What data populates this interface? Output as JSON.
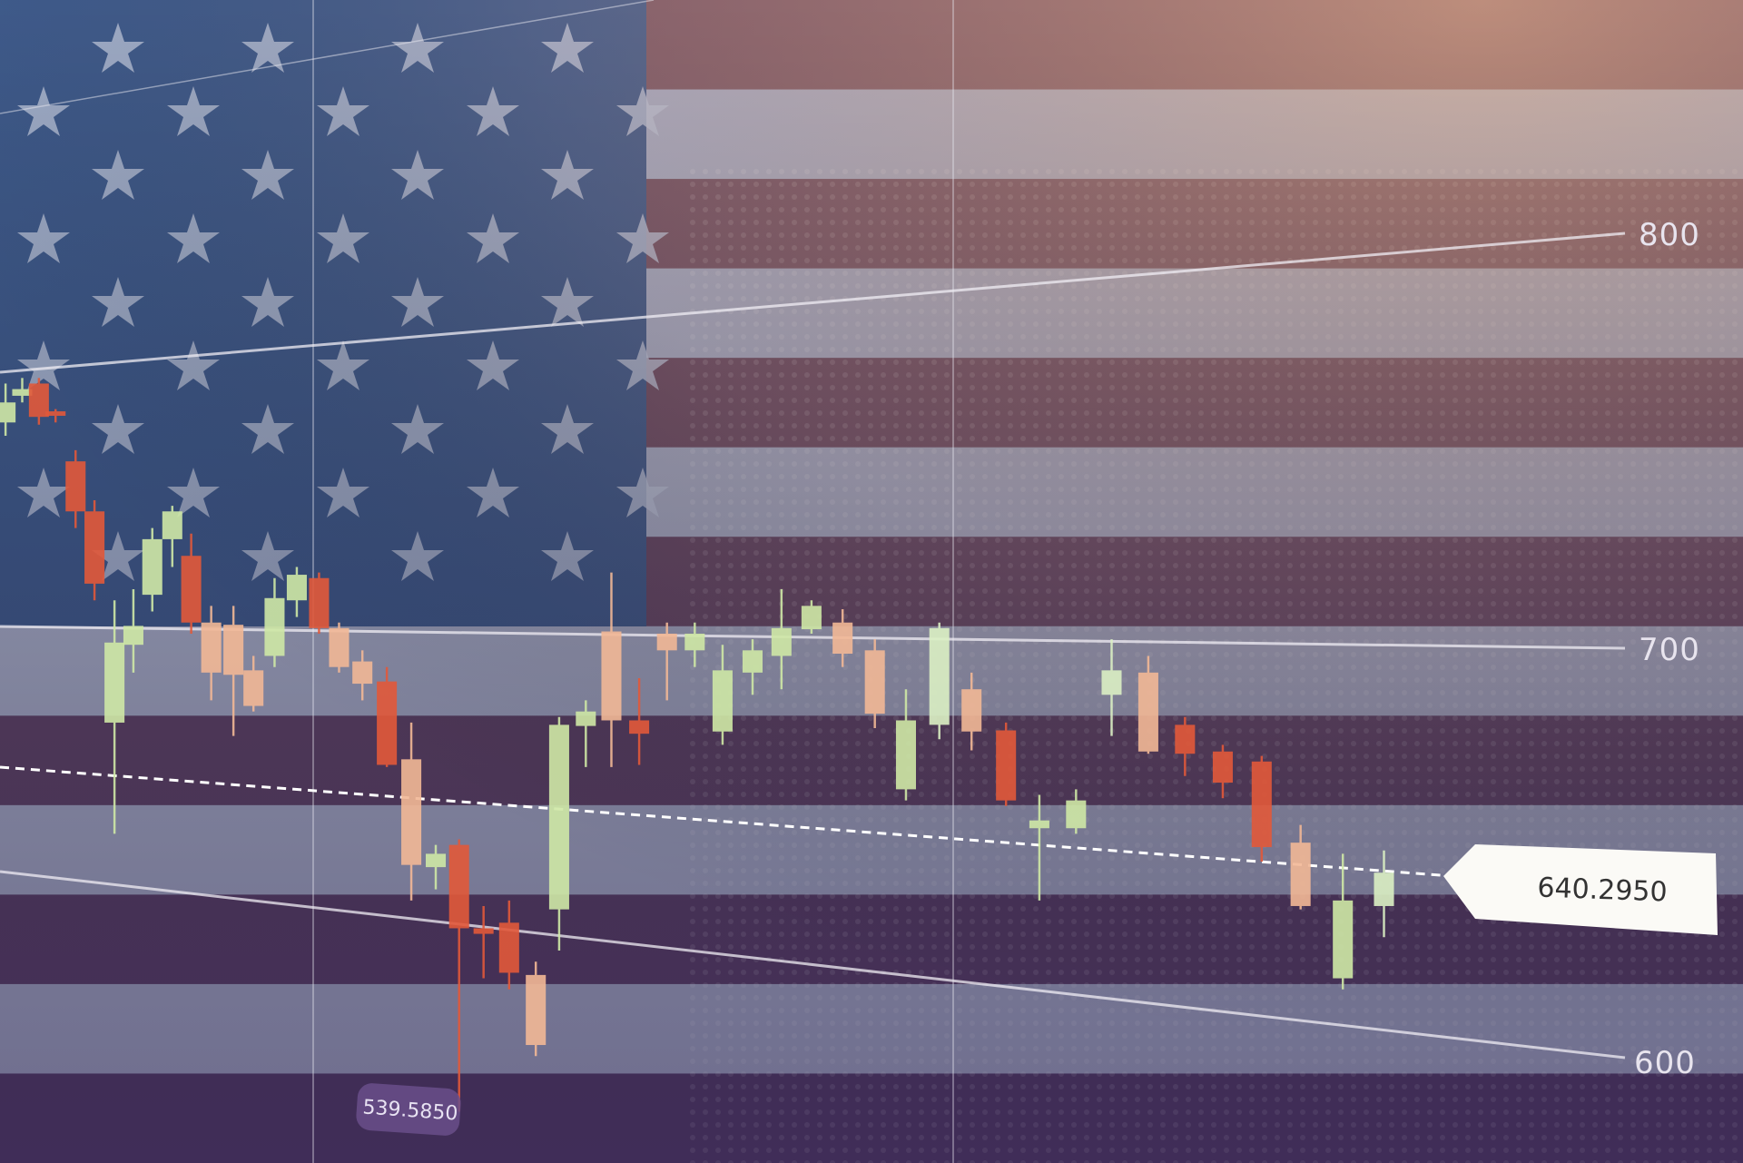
{
  "scale_labels": [
    "800",
    "700",
    "600"
  ],
  "price_tag": "640.2950",
  "low_tag": "539.5850"
}
